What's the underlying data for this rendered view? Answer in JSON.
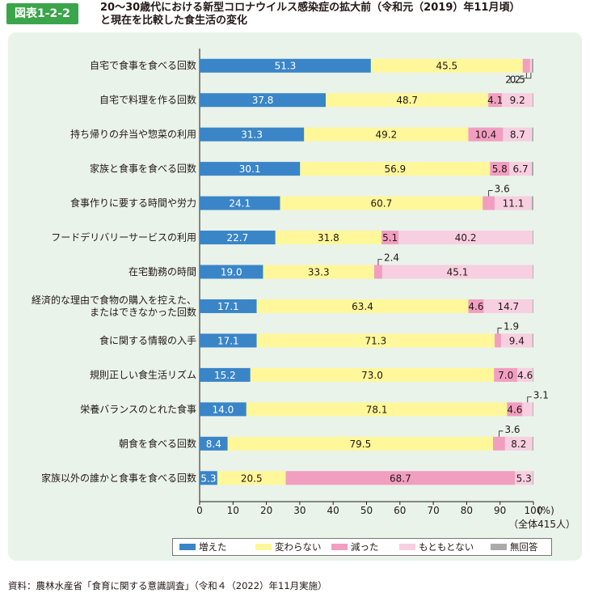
{
  "figure_label": "図表1-2-2",
  "title_line1": "20～30歳代における新型コロナウイルス感染症の拡大前（令和元（2019）年11月頃）",
  "title_line2": "と現在を比較した食生活の変化",
  "source": "資料：農林水産省「食育に関する意識調査」（令和４（2022）年11月実施）",
  "total_note": "（全体415人）",
  "unit": "(%)",
  "colors": {
    "increased": "#3a85c8",
    "unchanged": "#fff79a",
    "decreased": "#f29ec0",
    "originally_none": "#f7cfe0",
    "no_answer": "#aaaaaa",
    "panel": "#e9f3ea",
    "badge": "#3aa54a"
  },
  "legend": [
    "増えた",
    "変わらない",
    "減った",
    "もともとない",
    "無回答"
  ],
  "chart_data": {
    "type": "bar",
    "stacked": true,
    "orientation": "horizontal",
    "xlim": [
      0,
      100
    ],
    "xticks": [
      "0",
      "10",
      "20",
      "30",
      "40",
      "50",
      "60",
      "70",
      "80",
      "90",
      "100"
    ],
    "categories": [
      "自宅で食事を食べる回数",
      "自宅で料理を作る回数",
      "持ち帰りの弁当や惣菜の利用",
      "家族と食事を食べる回数",
      "食事作りに要する時間や労力",
      "フードデリバリーサービスの利用",
      "在宅勤務の時間",
      "経済的な理由で食物の購入を控えた、\nまたはできなかった回数",
      "食に関する情報の入手",
      "規則正しい食生活リズム",
      "栄養バランスのとれた食事",
      "朝食を食べる回数",
      "家族以外の誰かと食事を食べる回数"
    ],
    "series": [
      {
        "name": "増えた",
        "values": [
          51.3,
          37.8,
          31.3,
          30.1,
          24.1,
          22.7,
          19.0,
          17.1,
          17.1,
          15.2,
          14.0,
          8.4,
          5.3
        ]
      },
      {
        "name": "変わらない",
        "values": [
          45.5,
          48.7,
          49.2,
          56.9,
          60.7,
          31.8,
          33.3,
          63.4,
          71.3,
          73.0,
          78.1,
          79.5,
          20.5
        ]
      },
      {
        "name": "減った",
        "values": [
          2.2,
          4.1,
          10.4,
          5.8,
          3.6,
          5.1,
          2.4,
          4.6,
          1.9,
          7.0,
          4.6,
          3.6,
          68.7
        ]
      },
      {
        "name": "もともとない",
        "values": [
          0.5,
          9.2,
          8.7,
          6.7,
          11.1,
          40.2,
          45.1,
          14.7,
          9.4,
          4.6,
          3.1,
          8.2,
          5.3
        ]
      },
      {
        "name": "無回答",
        "values": [
          0.5,
          0.2,
          0.4,
          0.5,
          0.5,
          0.2,
          0.2,
          0.2,
          0.3,
          0.2,
          0.2,
          0.3,
          0.2
        ]
      }
    ],
    "data_labels": [
      [
        "51.3",
        "45.5",
        "2.2",
        "0.5",
        ""
      ],
      [
        "37.8",
        "48.7",
        "4.1",
        "9.2",
        ""
      ],
      [
        "31.3",
        "49.2",
        "10.4",
        "8.7",
        ""
      ],
      [
        "30.1",
        "56.9",
        "5.8",
        "6.7",
        ""
      ],
      [
        "24.1",
        "60.7",
        "3.6",
        "11.1",
        ""
      ],
      [
        "22.7",
        "31.8",
        "5.1",
        "40.2",
        ""
      ],
      [
        "19.0",
        "33.3",
        "2.4",
        "45.1",
        ""
      ],
      [
        "17.1",
        "63.4",
        "4.6",
        "14.7",
        ""
      ],
      [
        "17.1",
        "71.3",
        "1.9",
        "9.4",
        ""
      ],
      [
        "15.2",
        "73.0",
        "7.0",
        "4.6",
        ""
      ],
      [
        "14.0",
        "78.1",
        "4.6",
        "3.1",
        ""
      ],
      [
        "8.4",
        "79.5",
        "3.6",
        "8.2",
        ""
      ],
      [
        "5.3",
        "20.5",
        "68.7",
        "5.3",
        ""
      ]
    ]
  }
}
